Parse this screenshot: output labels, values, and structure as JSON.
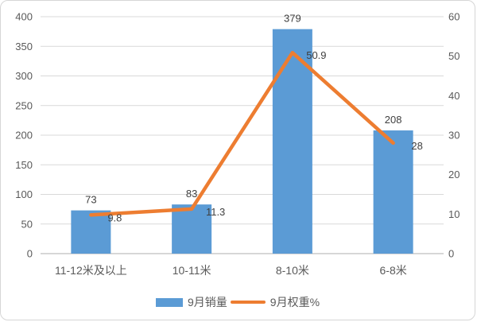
{
  "chart": {
    "background": "#ffffff",
    "frame_border_color": "#d6d6d6",
    "grid_color": "#d9d9d9",
    "axis_line_color": "#bfbfbf",
    "tick_label_color": "#595959",
    "data_label_color": "#404040"
  },
  "chart_data": {
    "type": "combo",
    "title": "",
    "categories": [
      "11-12米及以上",
      "10-11米",
      "8-10米",
      "6-8米"
    ],
    "series": [
      {
        "name": "9月销量",
        "type": "bar",
        "axis": "left",
        "color": "#5B9BD5",
        "values": [
          73,
          83,
          379,
          208
        ],
        "data_labels": [
          "73",
          "83",
          "379",
          "208"
        ]
      },
      {
        "name": "9月权重%",
        "type": "line",
        "axis": "right",
        "color": "#ED7D31",
        "values": [
          9.8,
          11.3,
          50.9,
          28
        ],
        "data_labels": [
          "9.8",
          "11.3",
          "50.9",
          "28"
        ]
      }
    ],
    "left_axis": {
      "min": 0,
      "max": 400,
      "step": 50,
      "ticks": [
        "0",
        "50",
        "100",
        "150",
        "200",
        "250",
        "300",
        "350",
        "400"
      ]
    },
    "right_axis": {
      "min": 0,
      "max": 60,
      "step": 10,
      "ticks": [
        "0",
        "10",
        "20",
        "30",
        "40",
        "50",
        "60"
      ]
    },
    "grid": true,
    "legend_position": "bottom"
  },
  "legend": {
    "items": [
      {
        "label": "9月销量",
        "type": "bar",
        "color": "#5B9BD5"
      },
      {
        "label": "9月权重%",
        "type": "line",
        "color": "#ED7D31"
      }
    ]
  }
}
